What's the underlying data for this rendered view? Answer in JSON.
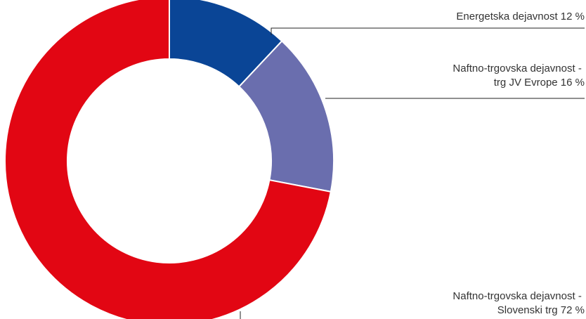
{
  "chart_data": {
    "type": "pie",
    "donut": true,
    "title": "",
    "start_angle_deg": 0,
    "direction": "clockwise",
    "slices": [
      {
        "label_lines": [
          "Energetska dejavnost 12 %"
        ],
        "value": 12,
        "color": "#0a4596"
      },
      {
        "label_lines": [
          "Naftno-trgovska dejavnost -",
          "trg JV Evrope 16 %"
        ],
        "value": 16,
        "color": "#6a6eae"
      },
      {
        "label_lines": [
          "Naftno-trgovska dejavnost -",
          "Slovenski trg 72 %"
        ],
        "value": 72,
        "color": "#e20613"
      }
    ]
  }
}
